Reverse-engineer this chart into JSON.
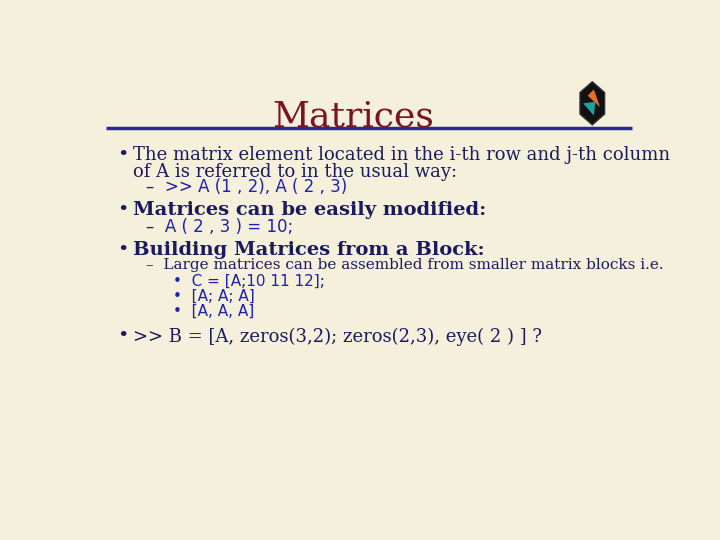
{
  "background_color": "#f5f0dc",
  "title": "Matrices",
  "title_color": "#7a1520",
  "title_fontsize": 26,
  "line_color": "#2b2b8f",
  "bullet_color": "#1a1a5e",
  "code_color": "#2020b0",
  "sub_color": "#1a1a5e",
  "main_font": "DejaVu Serif",
  "code_font": "DejaVu Sans",
  "lines": [
    {
      "type": "bullet",
      "level": 0,
      "text": "The matrix element located in the i-th row and j-th column",
      "style": "normal",
      "fontsize": 13
    },
    {
      "type": "cont",
      "level": 0,
      "text": "of A is referred to in the usual way:",
      "style": "normal",
      "fontsize": 13
    },
    {
      "type": "dash",
      "level": 1,
      "text": "–  >> A (1 , 2), A ( 2 , 3)",
      "style": "code",
      "fontsize": 12
    },
    {
      "type": "bullet",
      "level": 0,
      "text": "Matrices can be easily modified:",
      "style": "bold",
      "fontsize": 14
    },
    {
      "type": "dash",
      "level": 1,
      "text": "–  A ( 2 , 3 ) = 10;",
      "style": "code",
      "fontsize": 12
    },
    {
      "type": "bullet",
      "level": 0,
      "text": "Building Matrices from a Block:",
      "style": "bold",
      "fontsize": 14
    },
    {
      "type": "dash",
      "level": 1,
      "text": "–  Large matrices can be assembled from smaller matrix blocks i.e.",
      "style": "normal",
      "fontsize": 11
    },
    {
      "type": "subdash",
      "level": 2,
      "text": "•  C = [A;10 11 12];",
      "style": "code",
      "fontsize": 11
    },
    {
      "type": "subdash",
      "level": 2,
      "text": "•  [A; A; A]",
      "style": "code",
      "fontsize": 11
    },
    {
      "type": "subdash",
      "level": 2,
      "text": "•  [A, A, A]",
      "style": "code",
      "fontsize": 11
    },
    {
      "type": "bullet",
      "level": 0,
      "text": ">> B = [A, zeros(3,2); zeros(2,3), eye( 2 ) ] ?",
      "style": "normal",
      "fontsize": 13
    }
  ]
}
